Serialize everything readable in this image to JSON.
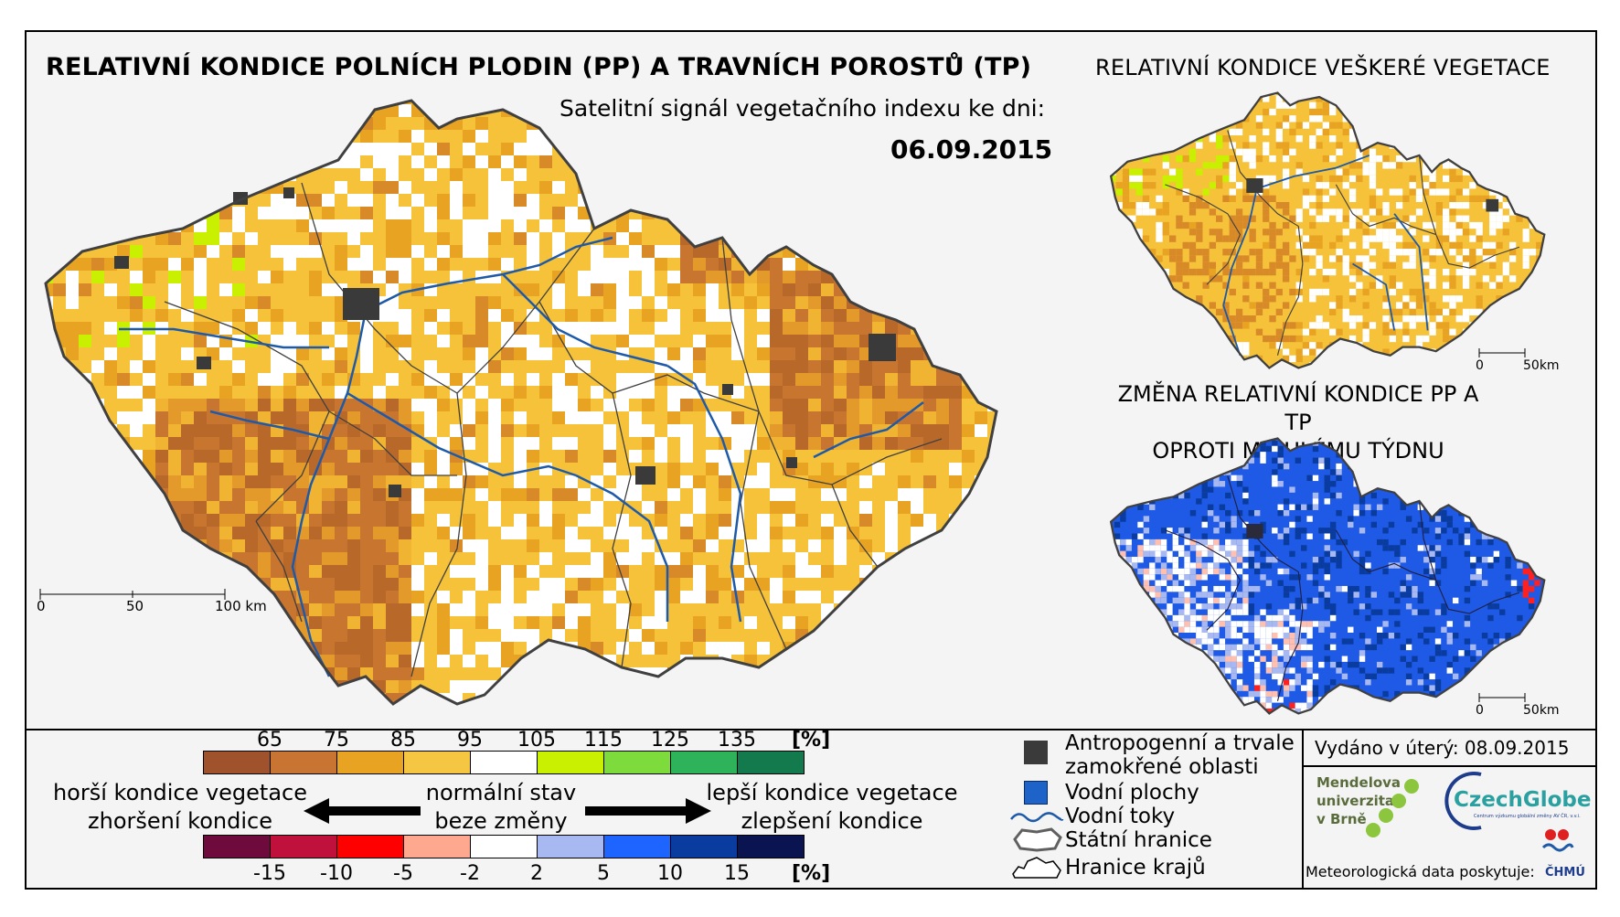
{
  "titles": {
    "main": "RELATIVNÍ KONDICE POLNÍCH PLODIN (PP) A TRAVNÍCH POROSTŮ (TP)",
    "vegetation": "RELATIVNÍ KONDICE VEŠKERÉ VEGETACE",
    "subtitle": "Satelitní signál vegetačního indexu ke dni:",
    "date": "06.09.2015",
    "change_line1": "ZMĚNA RELATIVNÍ KONDICE PP A TP",
    "change_line2": "OPROTI MINULÉMU TÝDNU"
  },
  "scalebars": {
    "main": [
      "0",
      "50",
      "100 km"
    ],
    "small_top": [
      "0",
      "50km"
    ],
    "small_bottom": [
      "0",
      "50km"
    ]
  },
  "legend_condition": {
    "unit": "[%]",
    "labels": [
      "65",
      "75",
      "85",
      "95",
      "105",
      "115",
      "125",
      "135"
    ],
    "colors": [
      "#a0522d",
      "#c87533",
      "#e8a323",
      "#f5c642",
      "#ffffff",
      "#c8f000",
      "#7ddc3c",
      "#2eb25a",
      "#137a4e"
    ]
  },
  "legend_change": {
    "unit": "[%]",
    "labels": [
      "-15",
      "-10",
      "-5",
      "-2",
      "2",
      "5",
      "10",
      "15"
    ],
    "colors": [
      "#6e0a3c",
      "#c0103c",
      "#ff0000",
      "#ffa890",
      "#ffffff",
      "#a8b8f0",
      "#1e64ff",
      "#0a3ca0",
      "#0a1450"
    ]
  },
  "legend_arrows": {
    "worse_1": "horší kondice vegetace",
    "worse_2": "zhoršení kondice",
    "normal_1": "normální stav",
    "normal_2": "beze změny",
    "better_1": "lepší kondice vegetace",
    "better_2": "zlepšení kondice"
  },
  "map_legend": {
    "anthropogenic_1": "Antropogenní a trvale",
    "anthropogenic_2": "zamokřené oblasti",
    "water_bodies": "Vodní plochy",
    "rivers": "Vodní toky",
    "state_border": "Státní hranice",
    "regions": "Hranice krajů"
  },
  "issued": "Vydáno v úterý: 08.09.2015",
  "logos": {
    "mendel_1": "Mendelova",
    "mendel_2": "univerzita",
    "mendel_3": "v Brně",
    "czechglobe": "CzechGlobe",
    "czechglobe_sub": "Centrum výzkumu globální změny AV ČR, v.v.i.",
    "chmu": "ČHMÚ"
  },
  "meteo_credit": "Meteorologická data poskytuje:",
  "colors": {
    "frame_bg": "#f4f4f4",
    "river": "#1e5aa8",
    "border": "#404040",
    "anthropogenic": "#3a3a3a",
    "water": "#1e64c8"
  },
  "icons": [
    "anthropogenic-square-icon",
    "water-square-icon",
    "river-line-icon",
    "state-border-icon",
    "region-border-icon",
    "arrow-left-icon",
    "arrow-right-icon"
  ]
}
